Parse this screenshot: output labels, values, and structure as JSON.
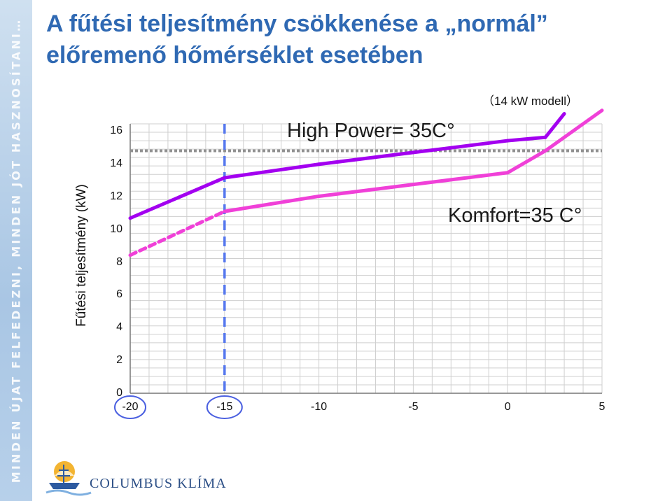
{
  "title": {
    "line1": "A fűtési teljesítmény csökkenése a „normál”",
    "line2": "előremenő hőmérséklet esetében"
  },
  "side_banner": "MINDEN ÚJAT FELFEDEZNI, MINDEN JÓT HASZNOSÍTANI…",
  "model_note": "（14 kW  modell）",
  "brand": {
    "name": "COLUMBUS KLÍMA"
  },
  "chart_data": {
    "type": "line",
    "ylabel": "Fűtési teljesítmény (kW)",
    "xlabel": "",
    "y_ticks": [
      "16",
      "14",
      "12",
      "10",
      "8",
      "6",
      "4",
      "2",
      "0"
    ],
    "x_ticks": [
      "-20",
      "-15",
      "-10",
      "-5",
      "0",
      "5"
    ],
    "xlim": [
      -20,
      5
    ],
    "ylim": [
      0,
      16
    ],
    "series": [
      {
        "name": "High Power= 35C°",
        "color": "#a300f0",
        "points": [
          [
            -20,
            10.4
          ],
          [
            -15,
            12.8
          ],
          [
            -10,
            13.6
          ],
          [
            -5,
            14.3
          ],
          [
            0,
            15
          ],
          [
            2,
            15.2
          ],
          [
            3,
            16.6
          ]
        ]
      },
      {
        "name": "Komfort=35 C°",
        "color": "#f040d8",
        "points": [
          [
            -20,
            8.2
          ],
          [
            -15,
            10.8
          ],
          [
            -10,
            11.7
          ],
          [
            -5,
            12.4
          ],
          [
            0,
            13.1
          ],
          [
            2,
            14.4
          ],
          [
            5,
            16.8
          ]
        ]
      }
    ],
    "annotations": {
      "high_power": "High Power= 35C°",
      "komfort": "Komfort=35 C°"
    },
    "reference_lines": {
      "vertical_x": -15,
      "horizontal_y": 14.4
    },
    "highlighted_x_ticks": [
      "-20",
      "-15"
    ],
    "grid": true
  }
}
